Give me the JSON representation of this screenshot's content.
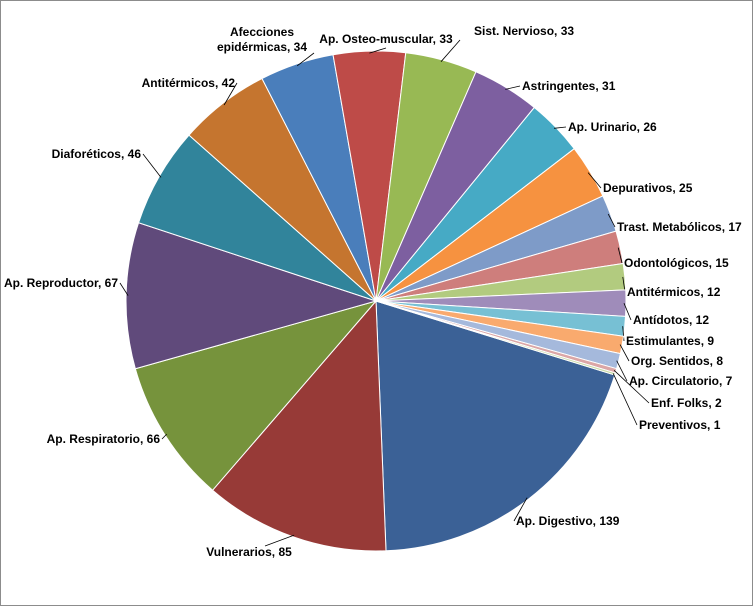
{
  "chart_data": {
    "type": "pie",
    "title": "",
    "slices": [
      {
        "label": "Ap. Digestivo, 139",
        "name": "Ap. Digestivo",
        "value": 139,
        "color": "#3b6196"
      },
      {
        "label": "Vulnerarios, 85",
        "name": "Vulnerarios",
        "value": 85,
        "color": "#973a37"
      },
      {
        "label": "Ap. Respiratorio, 66",
        "name": "Ap. Respiratorio",
        "value": 66,
        "color": "#76933c"
      },
      {
        "label": "Ap. Reproductor, 67",
        "name": "Ap. Reproductor",
        "value": 67,
        "color": "#604a7b"
      },
      {
        "label": "Diaforéticos, 46",
        "name": "Diaforéticos",
        "value": 46,
        "color": "#31849b"
      },
      {
        "label": "Antitérmicos, 42",
        "name": "Antitérmicos",
        "value": 42,
        "color": "#c5752f"
      },
      {
        "label": "Afecciones epidérmicas, 34",
        "lines": [
          "Afecciones",
          "epidérmicas, 34"
        ],
        "name": "Afecciones epidérmicas",
        "value": 34,
        "color": "#4a7ebb"
      },
      {
        "label": "Ap. Osteo-muscular, 33",
        "name": "Ap. Osteo-muscular",
        "value": 33,
        "color": "#be4b48"
      },
      {
        "label": "Sist. Nervioso, 33",
        "name": "Sist. Nervioso",
        "value": 33,
        "color": "#98b954"
      },
      {
        "label": "Astringentes, 31",
        "name": "Astringentes",
        "value": 31,
        "color": "#7d5fa0"
      },
      {
        "label": "Ap. Urinario, 26",
        "name": "Ap. Urinario",
        "value": 26,
        "color": "#46aac5"
      },
      {
        "label": "Depurativos, 25",
        "name": "Depurativos",
        "value": 25,
        "color": "#f69240"
      },
      {
        "label": "Trast. Metabólicos, 17",
        "name": "Trast. Metabólicos",
        "value": 17,
        "color": "#7e9bc8"
      },
      {
        "label": "Odontológicos, 15",
        "name": "Odontológicos",
        "value": 15,
        "color": "#ce7e7c"
      },
      {
        "label": "Antitérmicos, 12",
        "name": "Antitérmicos",
        "value": 12,
        "color": "#b2cb7f"
      },
      {
        "label": "Antídotos, 12",
        "name": "Antídotos",
        "value": 12,
        "color": "#9f8cba"
      },
      {
        "label": "Estimulantes, 9",
        "name": "Estimulantes",
        "value": 9,
        "color": "#77c0d4"
      },
      {
        "label": "Org. Sentidos, 8",
        "name": "Org. Sentidos",
        "value": 8,
        "color": "#f9aa6e"
      },
      {
        "label": "Ap. Circulatorio, 7",
        "name": "Ap. Circulatorio",
        "value": 7,
        "color": "#a5b9dc"
      },
      {
        "label": "Enf. Folks, 2",
        "name": "Enf. Folks",
        "value": 2,
        "color": "#dba6a6"
      },
      {
        "label": "Preventivos, 1",
        "name": "Preventivos",
        "value": 1,
        "color": "#cadba8"
      }
    ],
    "legend": "none",
    "data_labels": "outside with leader lines"
  }
}
